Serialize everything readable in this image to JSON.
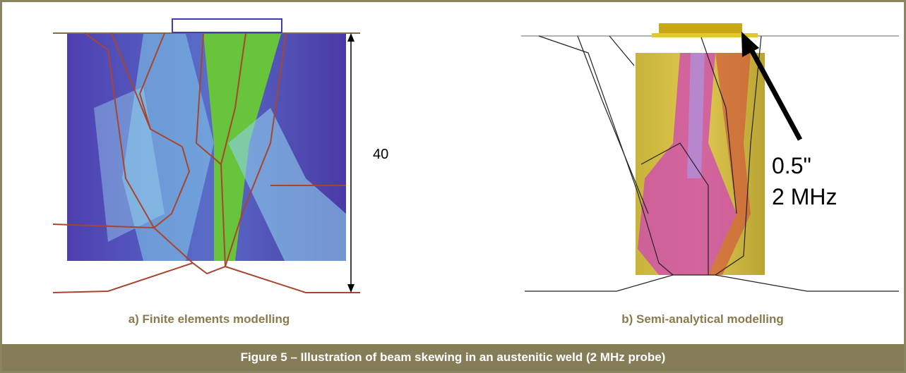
{
  "panels": [
    {
      "label": "a) Finite elements modelling",
      "annotations": [
        "40"
      ]
    },
    {
      "label": "b) Semi-analytical modelling",
      "annotations": [
        "0.5\"",
        "2 MHz"
      ]
    }
  ],
  "caption": "Figure 5 – Illustration of beam skewing in an austenitic weld (2 MHz probe)"
}
